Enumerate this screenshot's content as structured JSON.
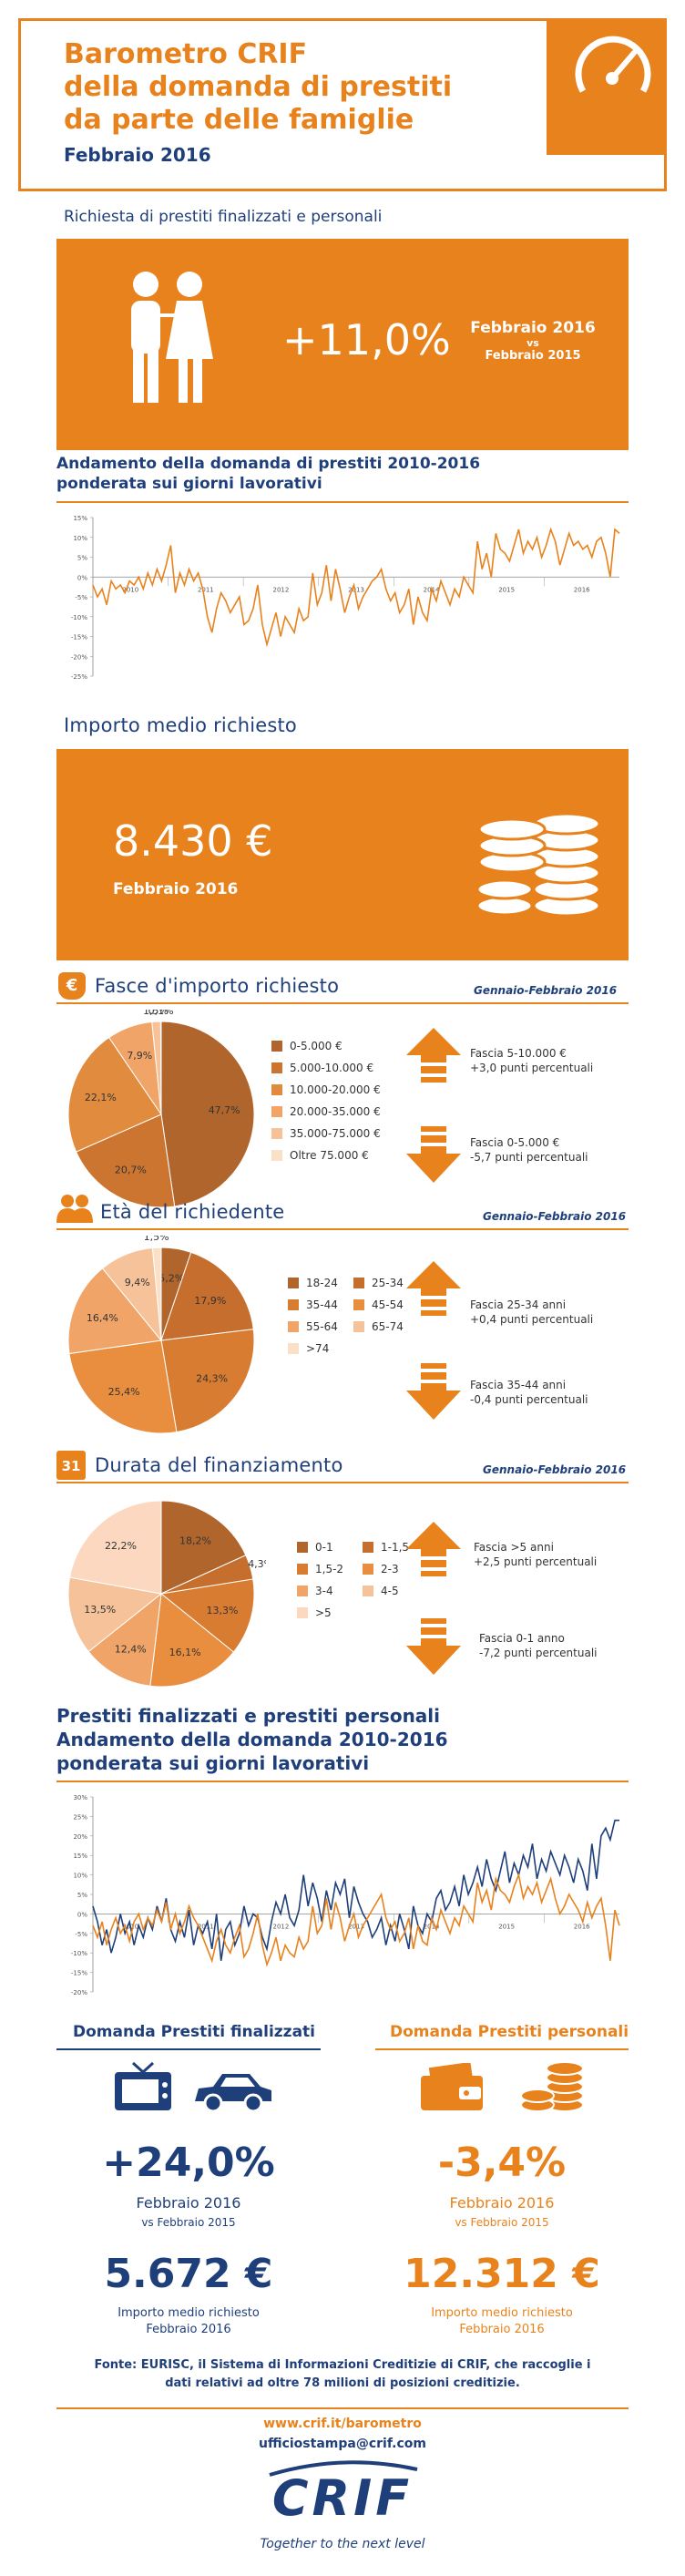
{
  "header": {
    "title_line1": "Barometro CRIF",
    "title_line2": "della domanda di prestiti",
    "title_line3": "da parte delle famiglie",
    "date": "Febbraio 2016"
  },
  "request": {
    "heading": "Richiesta di prestiti finalizzati e personali",
    "value": "+11,0%",
    "period_line1": "Febbraio 2016",
    "vs": "vs",
    "period_line2": "Febbraio 2015"
  },
  "trend1": {
    "title_line1": "Andamento della domanda di prestiti 2010-2016",
    "title_line2": "ponderata sui giorni lavorativi"
  },
  "importo": {
    "heading": "Importo medio richiesto",
    "value": "8.430 €",
    "period": "Febbraio 2016"
  },
  "fasce": {
    "heading": "Fasce d'importo richiesto",
    "period": "Gennaio-Febbraio 2016",
    "note_up_line1": "Fascia 5-10.000 €",
    "note_up_line2": "+3,0 punti percentuali",
    "note_down_line1": "Fascia 0-5.000 €",
    "note_down_line2": "-5,7 punti percentuali"
  },
  "eta": {
    "heading": "Età del richiedente",
    "period": "Gennaio-Febbraio 2016",
    "note_up_line1": "Fascia 25-34 anni",
    "note_up_line2": "+0,4 punti percentuali",
    "note_down_line1": "Fascia 35-44 anni",
    "note_down_line2": "-0,4 punti percentuali"
  },
  "durata": {
    "heading": "Durata del finanziamento",
    "period": "Gennaio-Febbraio 2016",
    "icon_day": "31",
    "note_up_line1": "Fascia >5 anni",
    "note_up_line2": "+2,5 punti percentuali",
    "note_down_line1": "Fascia 0-1 anno",
    "note_down_line2": "-7,2 punti percentuali"
  },
  "trend2": {
    "title_line1": "Prestiti finalizzati e prestiti personali",
    "title_line2": "Andamento della domanda 2010-2016",
    "title_line3": "ponderata sui giorni lavorativi"
  },
  "finalizzati": {
    "heading": "Domanda Prestiti finalizzati",
    "value": "+24,0%",
    "period": "Febbraio 2016",
    "vs": "vs Febbraio 2015",
    "amount": "5.672 €",
    "amount_label_line1": "Importo medio richiesto",
    "amount_label_line2": "Febbraio 2016"
  },
  "personali": {
    "heading": "Domanda Prestiti personali",
    "value": "-3,4%",
    "period": "Febbraio 2016",
    "vs": "vs Febbraio 2015",
    "amount": "12.312 €",
    "amount_label_line1": "Importo medio richiesto",
    "amount_label_line2": "Febbraio 2016"
  },
  "source": {
    "line1": "Fonte: EURISC, il Sistema di Informazioni Creditizie di CRIF, che raccoglie i",
    "line2": "dati relativi ad oltre 78 milioni di posizioni creditizie."
  },
  "footer": {
    "url": "www.crif.it/barometro",
    "email": "ufficiostampa@crif.com",
    "logo": "CRIF",
    "tagline": "Together to the next level"
  },
  "colors": {
    "orange": "#e8821c",
    "navy": "#1f3f7a"
  },
  "chart_data": [
    {
      "type": "line",
      "id": "trend1",
      "ylim": [
        -25,
        15
      ],
      "yticks": [
        "15%",
        "10%",
        "5%",
        "0%",
        "-5%",
        "-10%",
        "-15%",
        "-20%",
        "-25%"
      ],
      "xgroups": [
        "2010",
        "2011",
        "2012",
        "2013",
        "2014",
        "2015",
        "2016"
      ],
      "series": [
        {
          "color": "#e8821c",
          "values": [
            -2,
            -5,
            -3,
            -7,
            -1,
            -3,
            -2,
            -4,
            -1,
            -2,
            0,
            -3,
            1,
            -2,
            2,
            -1,
            3,
            8,
            -4,
            1,
            -2,
            2,
            -1,
            1,
            -3,
            -10,
            -14,
            -8,
            -4,
            -6,
            -9,
            -7,
            -5,
            -12,
            -11,
            -8,
            -2,
            -12,
            -17,
            -13,
            -9,
            -15,
            -10,
            -12,
            -14,
            -8,
            -11,
            -10,
            1,
            -7,
            -4,
            3,
            -6,
            2,
            -3,
            -9,
            -5,
            -2,
            -8,
            -5,
            -3,
            -1,
            0,
            2,
            -3,
            -6,
            -4,
            -9,
            -7,
            -3,
            -12,
            -5,
            -9,
            -11,
            -3,
            -6,
            -1,
            -4,
            -7,
            -3,
            -5,
            0,
            -2,
            -4,
            9,
            2,
            6,
            0,
            11,
            7,
            6,
            4,
            8,
            12,
            6,
            9,
            7,
            10,
            5,
            8,
            12,
            9,
            3,
            7,
            11,
            8,
            9,
            7,
            8,
            5,
            9,
            10,
            6,
            0,
            12,
            11
          ]
        }
      ]
    },
    {
      "type": "bar",
      "id": "pie-fasce",
      "pie": true,
      "categories": [
        "0-5.000 €",
        "5.000-10.000 €",
        "10.000-20.000 €",
        "20.000-35.000 €",
        "35.000-75.000 €",
        "Oltre 75.000 €"
      ],
      "values": [
        47.7,
        20.7,
        22.1,
        7.9,
        1.5,
        0.1
      ],
      "labels": [
        "47,7%",
        "20,7%",
        "22,1%",
        "7,9%",
        "1,5%",
        "0,1%"
      ],
      "colors": [
        "#b0652c",
        "#cc7530",
        "#e08b3e",
        "#f0a468",
        "#f6c29a",
        "#fbe0c8"
      ]
    },
    {
      "type": "bar",
      "id": "pie-eta",
      "pie": true,
      "categories": [
        "18-24",
        "25-34",
        "35-44",
        "45-54",
        "55-64",
        "65-74",
        ">74"
      ],
      "values": [
        5.2,
        17.9,
        24.3,
        25.4,
        16.4,
        9.4,
        1.5
      ],
      "labels": [
        "5,2%",
        "17,9%",
        "24,3%",
        "25,4%",
        "16,4%",
        "9,4%",
        "1,5%"
      ],
      "colors": [
        "#b0652c",
        "#c56e2e",
        "#d87c32",
        "#e98e3e",
        "#f0a468",
        "#f6c29a",
        "#fbe0c8"
      ]
    },
    {
      "type": "bar",
      "id": "pie-durata",
      "pie": true,
      "categories": [
        "0-1",
        "1-1,5",
        "1,5-2",
        "2-3",
        "3-4",
        "4-5",
        ">5"
      ],
      "values": [
        18.2,
        4.3,
        13.3,
        16.1,
        12.4,
        13.5,
        22.2
      ],
      "labels": [
        "18,2%",
        "4,3%",
        "13,3%",
        "16,1%",
        "12,4%",
        "13,5%",
        "22,2%"
      ],
      "colors": [
        "#b0652c",
        "#c56e2e",
        "#d87c32",
        "#e98e3e",
        "#f0a468",
        "#f6c29a",
        "#fbd8bf"
      ]
    },
    {
      "type": "line",
      "id": "trend2",
      "ylim": [
        -20,
        30
      ],
      "yticks": [
        "30%",
        "25%",
        "20%",
        "15%",
        "10%",
        "5%",
        "0%",
        "-5%",
        "-10%",
        "-15%",
        "-20%"
      ],
      "xgroups": [
        "2010",
        "2011",
        "2012",
        "2013",
        "2014",
        "2015",
        "2016"
      ],
      "series": [
        {
          "color": "#1f3f7a",
          "values": [
            2,
            -2,
            -8,
            -4,
            -10,
            -6,
            0,
            -5,
            -2,
            -8,
            -3,
            -6,
            -1,
            -4,
            2,
            -2,
            4,
            -4,
            -7,
            -2,
            -6,
            1,
            -8,
            -3,
            -5,
            -2,
            -9,
            0,
            -12,
            -4,
            -2,
            -8,
            -5,
            2,
            -3,
            0,
            -1,
            -6,
            -9,
            -2,
            3,
            0,
            5,
            -1,
            -3,
            1,
            10,
            2,
            8,
            4,
            -2,
            6,
            1,
            8,
            5,
            9,
            -1,
            7,
            3,
            0,
            -2,
            -6,
            -4,
            -1,
            -8,
            -3,
            -7,
            0,
            -4,
            -9,
            2,
            -3,
            -5,
            0,
            -2,
            4,
            6,
            1,
            3,
            7,
            2,
            10,
            5,
            8,
            12,
            7,
            14,
            9,
            6,
            11,
            16,
            8,
            13,
            10,
            15,
            12,
            18,
            9,
            14,
            11,
            16,
            13,
            10,
            15,
            12,
            8,
            14,
            11,
            6,
            18,
            9,
            20,
            22,
            19,
            24,
            24
          ]
        },
        {
          "color": "#e8821c",
          "values": [
            -3,
            -6,
            -2,
            -8,
            -4,
            -1,
            -5,
            -3,
            -7,
            -2,
            0,
            -4,
            -1,
            -3,
            1,
            -2,
            3,
            -4,
            0,
            -5,
            -2,
            2,
            -1,
            -3,
            -6,
            -9,
            -12,
            -7,
            -4,
            -8,
            -10,
            -6,
            -3,
            -11,
            -9,
            -5,
            0,
            -8,
            -13,
            -10,
            -6,
            -12,
            -8,
            -10,
            -11,
            -6,
            -9,
            -7,
            2,
            -5,
            -3,
            4,
            -4,
            3,
            -1,
            -7,
            -3,
            0,
            -6,
            -3,
            -1,
            1,
            3,
            5,
            -1,
            -4,
            -2,
            -7,
            -5,
            -1,
            -9,
            -3,
            -7,
            -8,
            -1,
            -4,
            1,
            -2,
            -5,
            -1,
            -3,
            2,
            0,
            -2,
            8,
            3,
            6,
            1,
            9,
            6,
            5,
            3,
            7,
            10,
            4,
            7,
            5,
            8,
            3,
            6,
            9,
            4,
            0,
            2,
            5,
            3,
            1,
            -2,
            3,
            -1,
            2,
            4,
            -3,
            -12,
            1,
            -3
          ]
        }
      ]
    }
  ]
}
